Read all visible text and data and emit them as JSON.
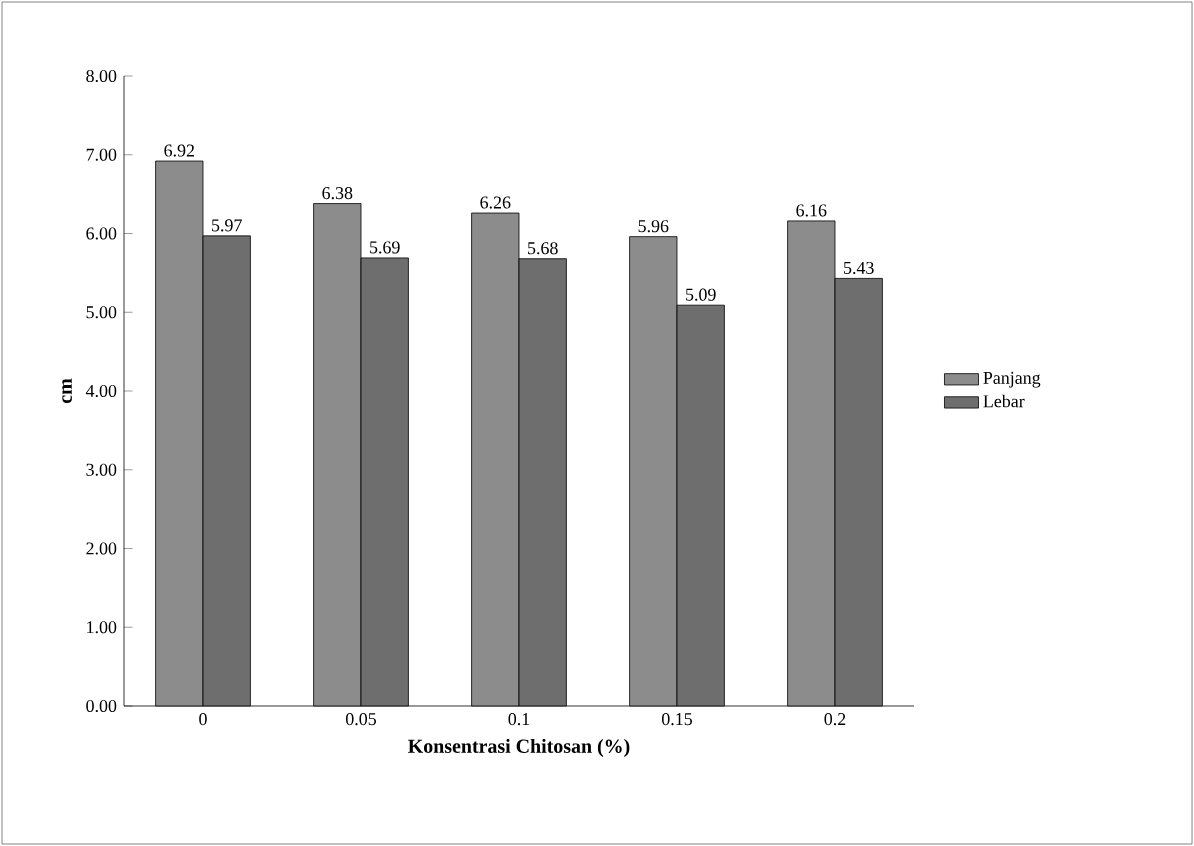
{
  "chart_data": {
    "type": "bar",
    "xlabel": "Konsentrasi Chitosan (%)",
    "ylabel": "cm",
    "categories": [
      "0",
      "0.05",
      "0.1",
      "0.15",
      "0.2"
    ],
    "series": [
      {
        "name": "Panjang",
        "color": "#8c8c8c",
        "values": [
          6.92,
          6.38,
          6.26,
          5.96,
          6.16
        ]
      },
      {
        "name": "Lebar",
        "color": "#6e6e6e",
        "values": [
          5.97,
          5.69,
          5.68,
          5.09,
          5.43
        ]
      }
    ],
    "ylim": [
      0,
      8
    ],
    "yticks": [
      {
        "value": 0,
        "label": "0.00"
      },
      {
        "value": 1,
        "label": "1.00"
      },
      {
        "value": 2,
        "label": "2.00"
      },
      {
        "value": 3,
        "label": "3.00"
      },
      {
        "value": 4,
        "label": "4.00"
      },
      {
        "value": 5,
        "label": "5.00"
      },
      {
        "value": 6,
        "label": "6.00"
      },
      {
        "value": 7,
        "label": "7.00"
      },
      {
        "value": 8,
        "label": "8.00"
      }
    ],
    "data_labels": true,
    "legend": "right",
    "grid": false
  }
}
